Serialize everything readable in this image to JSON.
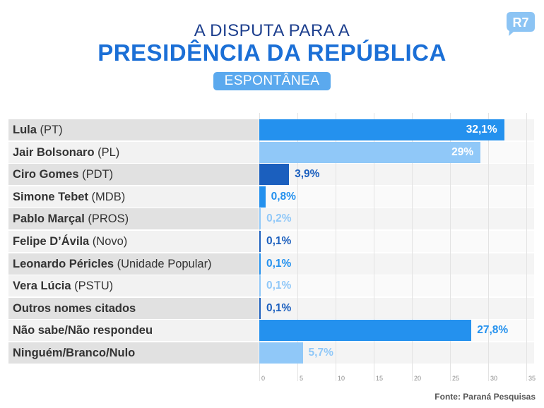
{
  "header": {
    "title_line1": "A DISPUTA PARA A",
    "title_line2": "PRESIDÊNCIA DA REPÚBLICA",
    "badge": "ESPONTÂNEA",
    "logo_text": "R7"
  },
  "colors": {
    "mid_blue": "#2491ee",
    "light_blue": "#90c8f8",
    "dark_blue": "#1b5fbe",
    "title_navy": "#1d3f8e",
    "title_blue": "#1b6fd6",
    "badge_blue": "#5ba9ee"
  },
  "source": "Fonte: Paraná Pesquisas",
  "chart_data": {
    "type": "bar",
    "orientation": "horizontal",
    "title": "A DISPUTA PARA A PRESIDÊNCIA DA REPÚBLICA",
    "subtitle": "ESPONTÂNEA",
    "xlabel": "",
    "ylabel": "",
    "xlim": [
      0,
      35
    ],
    "xticks": [
      0,
      5,
      10,
      15,
      20,
      25,
      30,
      35
    ],
    "grid": true,
    "categories": [
      {
        "name": "Lula",
        "party": "(PT)"
      },
      {
        "name": "Jair Bolsonaro",
        "party": "(PL)"
      },
      {
        "name": "Ciro Gomes",
        "party": "(PDT)"
      },
      {
        "name": "Simone Tebet",
        "party": "(MDB)"
      },
      {
        "name": "Pablo Marçal",
        "party": "(PROS)"
      },
      {
        "name": "Felipe D’Ávila",
        "party": "(Novo)"
      },
      {
        "name": "Leonardo Péricles",
        "party": "(Unidade Popular)"
      },
      {
        "name": "Vera Lúcia",
        "party": "(PSTU)"
      },
      {
        "name": "Outros nomes citados",
        "party": ""
      },
      {
        "name": "Não sabe/Não respondeu",
        "party": ""
      },
      {
        "name": "Ninguém/Branco/Nulo",
        "party": ""
      }
    ],
    "values": [
      32.1,
      29,
      3.9,
      0.8,
      0.2,
      0.1,
      0.1,
      0.1,
      0.1,
      27.8,
      5.7
    ],
    "value_labels": [
      "32,1%",
      "29%",
      "3,9%",
      "0,8%",
      "0,2%",
      "0,1%",
      "0,1%",
      "0,1%",
      "0,1%",
      "27,8%",
      "5,7%"
    ],
    "bar_colors": [
      "#2491ee",
      "#90c8f8",
      "#1b5fbe",
      "#2491ee",
      "#90c8f8",
      "#1b5fbe",
      "#2491ee",
      "#90c8f8",
      "#1b5fbe",
      "#2491ee",
      "#90c8f8"
    ],
    "label_inside": [
      true,
      true,
      false,
      false,
      false,
      false,
      false,
      false,
      false,
      false,
      false
    ],
    "source": "Fonte: Paraná Pesquisas"
  }
}
